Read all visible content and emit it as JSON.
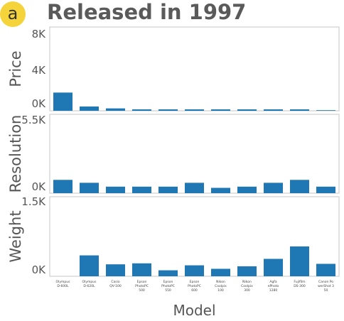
{
  "badge": "a",
  "chart_data": {
    "type": "bar",
    "title": "Released in 1997",
    "xlabel": "Model",
    "categories": [
      [
        "Olympus",
        "D-600L"
      ],
      [
        "Olympus",
        "D-620L"
      ],
      [
        "Casio",
        "QV-100"
      ],
      [
        "Epson",
        "PhotoPC",
        "500"
      ],
      [
        "Epson",
        "PhotoPC",
        "550"
      ],
      [
        "Epson",
        "PhotoPC",
        "600"
      ],
      [
        "Nikon",
        "Coolpix",
        "100"
      ],
      [
        "Nikon",
        "Coolpix",
        "300"
      ],
      [
        "Agfa",
        "ePhoto",
        "1280"
      ],
      [
        "Fujifilm",
        "DS-300"
      ],
      [
        "Canon Po",
        "werShot 3",
        "50"
      ]
    ],
    "panels": [
      {
        "ylabel": "Price",
        "ylim": [
          0,
          8000
        ],
        "ticks": [
          8000,
          4000,
          0
        ],
        "tick_labels": [
          "8K",
          "4K",
          "0K"
        ],
        "values": [
          1900,
          450,
          250,
          150,
          150,
          150,
          150,
          150,
          150,
          150,
          60
        ]
      },
      {
        "ylabel": "Resolution",
        "ylim": [
          0,
          5500
        ],
        "ticks": [
          5500,
          0
        ],
        "tick_labels": [
          "5.5K",
          "0K"
        ],
        "values": [
          1000,
          780,
          490,
          490,
          490,
          780,
          400,
          490,
          780,
          1000,
          490
        ]
      },
      {
        "ylabel": "Weight",
        "ylim": [
          0,
          1500
        ],
        "ticks": [
          1500,
          0
        ],
        "tick_labels": [
          "1.5K",
          "0K"
        ],
        "values": [
          0,
          420,
          240,
          260,
          120,
          220,
          150,
          200,
          350,
          600,
          250
        ]
      }
    ],
    "bar_color": "#1f77b4"
  }
}
